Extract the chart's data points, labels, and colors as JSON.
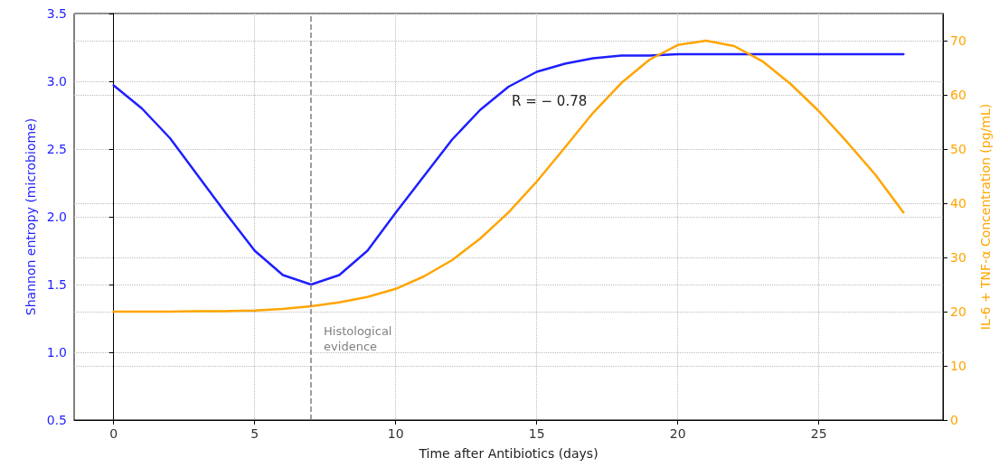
{
  "chart_data": {
    "type": "line",
    "xlabel": "Time after Antibiotics (days)",
    "ylabel": "Shannon entropy (microbiome)",
    "y2label": "IL-6 + TNF-α Concentration (pg/mL)",
    "x": [
      0,
      1,
      2,
      3,
      4,
      5,
      6,
      7,
      8,
      9,
      10,
      11,
      12,
      13,
      14,
      15,
      16,
      17,
      18,
      19,
      20,
      21,
      22,
      23,
      24,
      25,
      26,
      27,
      28
    ],
    "series": [
      {
        "color": "#1f1fff",
        "values": [
          2.97,
          2.8,
          2.58,
          2.3,
          2.02,
          1.75,
          1.57,
          1.5,
          1.57,
          1.75,
          2.03,
          2.3,
          2.57,
          2.79,
          2.96,
          3.07,
          3.13,
          3.17,
          3.19,
          3.19,
          3.2,
          3.2,
          3.2,
          3.2,
          3.2,
          3.2,
          3.2,
          3.2,
          3.2
        ]
      },
      {
        "color": "#ffa500",
        "axis": "y2",
        "values": [
          20,
          20,
          20,
          20.1,
          20.1,
          20.2,
          20.5,
          21,
          21.7,
          22.7,
          24.2,
          26.5,
          29.5,
          33.5,
          38.3,
          44,
          50.3,
          56.7,
          62.2,
          66.5,
          69.2,
          70,
          69,
          66.2,
          62,
          57,
          51.3,
          45.3,
          38.3
        ]
      }
    ],
    "xlim": [
      -1.4,
      29.4
    ],
    "xticks": [
      0,
      5,
      10,
      15,
      20,
      25
    ],
    "ylim": [
      0.5,
      3.5
    ],
    "yticks": [
      0.5,
      {
        "value": 1,
        "label": "1.0"
      },
      1.5,
      {
        "value": 2,
        "label": "2.0"
      },
      2.5,
      {
        "value": 3,
        "label": "3.0"
      },
      3.5
    ],
    "y2lim": [
      0,
      75
    ],
    "y2ticks": [
      0,
      10,
      20,
      30,
      40,
      50,
      60,
      70
    ],
    "ref_lines": [
      {
        "axis": "x",
        "value": 7,
        "label": "Histological evidence",
        "color": "#808080",
        "line_style": "dashed"
      }
    ],
    "annotations": [
      "R = − 0.78"
    ],
    "grid": true,
    "marker": "none",
    "line_style": "solid"
  }
}
